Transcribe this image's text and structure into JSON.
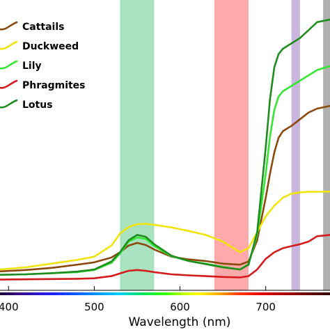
{
  "chart_data": {
    "type": "line",
    "title": "",
    "xlabel": "Wavelength (nm)",
    "ylabel": "",
    "xlim": [
      390,
      775
    ],
    "ylim": [
      0,
      1
    ],
    "xticks": [
      400,
      500,
      600,
      700
    ],
    "grid": false,
    "legend_position": "top-left",
    "bands": [
      {
        "x0": 530,
        "x1": 570,
        "color": "#a8e2c0"
      },
      {
        "x0": 640,
        "x1": 680,
        "color": "#ffaaaa"
      },
      {
        "x0": 730,
        "x1": 740,
        "color": "#c8b6df"
      },
      {
        "x0": 767,
        "x1": 775,
        "color": "#b0b0b0"
      }
    ],
    "series": [
      {
        "name": "Cattails",
        "color": "#8b4a0c",
        "x": [
          390,
          420,
          450,
          480,
          500,
          520,
          530,
          540,
          550,
          560,
          570,
          590,
          610,
          630,
          650,
          670,
          680,
          690,
          700,
          705,
          710,
          715,
          720,
          730,
          740,
          750,
          760,
          775
        ],
        "y": [
          0.053,
          0.058,
          0.066,
          0.078,
          0.087,
          0.105,
          0.125,
          0.15,
          0.16,
          0.152,
          0.135,
          0.108,
          0.098,
          0.092,
          0.082,
          0.078,
          0.09,
          0.17,
          0.33,
          0.42,
          0.5,
          0.555,
          0.58,
          0.6,
          0.625,
          0.65,
          0.665,
          0.675
        ]
      },
      {
        "name": "Duckweed",
        "color": "#f1e30c",
        "x": [
          390,
          420,
          450,
          480,
          500,
          520,
          530,
          540,
          550,
          560,
          570,
          590,
          610,
          630,
          650,
          670,
          680,
          690,
          700,
          710,
          720,
          730,
          740,
          750,
          760,
          775
        ],
        "y": [
          0.06,
          0.068,
          0.082,
          0.096,
          0.108,
          0.15,
          0.195,
          0.22,
          0.23,
          0.232,
          0.228,
          0.218,
          0.205,
          0.19,
          0.165,
          0.125,
          0.14,
          0.2,
          0.26,
          0.3,
          0.33,
          0.345,
          0.35,
          0.352,
          0.352,
          0.353
        ]
      },
      {
        "name": "Lily",
        "color": "#34e534",
        "x": [
          390,
          420,
          450,
          480,
          500,
          520,
          530,
          540,
          550,
          560,
          570,
          590,
          610,
          630,
          650,
          670,
          680,
          690,
          700,
          705,
          710,
          715,
          720,
          730,
          740,
          750,
          760,
          775
        ],
        "y": [
          0.04,
          0.042,
          0.046,
          0.05,
          0.058,
          0.085,
          0.12,
          0.165,
          0.18,
          0.175,
          0.148,
          0.11,
          0.092,
          0.082,
          0.07,
          0.06,
          0.08,
          0.19,
          0.42,
          0.56,
          0.66,
          0.71,
          0.73,
          0.75,
          0.77,
          0.79,
          0.81,
          0.825
        ]
      },
      {
        "name": "Phragmites",
        "color": "#d41a1a",
        "x": [
          390,
          420,
          450,
          480,
          500,
          520,
          530,
          540,
          550,
          560,
          570,
          590,
          610,
          630,
          650,
          670,
          680,
          690,
          700,
          710,
          720,
          730,
          740,
          750,
          760,
          775
        ],
        "y": [
          0.022,
          0.023,
          0.024,
          0.025,
          0.027,
          0.035,
          0.045,
          0.055,
          0.058,
          0.055,
          0.05,
          0.042,
          0.038,
          0.035,
          0.032,
          0.03,
          0.035,
          0.06,
          0.1,
          0.125,
          0.14,
          0.148,
          0.155,
          0.165,
          0.185,
          0.19
        ]
      },
      {
        "name": "Lotus",
        "color": "#1f8c1f",
        "x": [
          390,
          420,
          450,
          480,
          500,
          520,
          530,
          540,
          550,
          560,
          570,
          590,
          610,
          630,
          650,
          670,
          680,
          690,
          700,
          705,
          710,
          715,
          720,
          730,
          740,
          750,
          760,
          775
        ],
        "y": [
          0.04,
          0.042,
          0.046,
          0.052,
          0.06,
          0.09,
          0.125,
          0.17,
          0.19,
          0.183,
          0.155,
          0.112,
          0.092,
          0.08,
          0.068,
          0.06,
          0.078,
          0.2,
          0.52,
          0.7,
          0.82,
          0.87,
          0.89,
          0.91,
          0.93,
          0.96,
          0.99,
          1.0
        ]
      }
    ]
  }
}
